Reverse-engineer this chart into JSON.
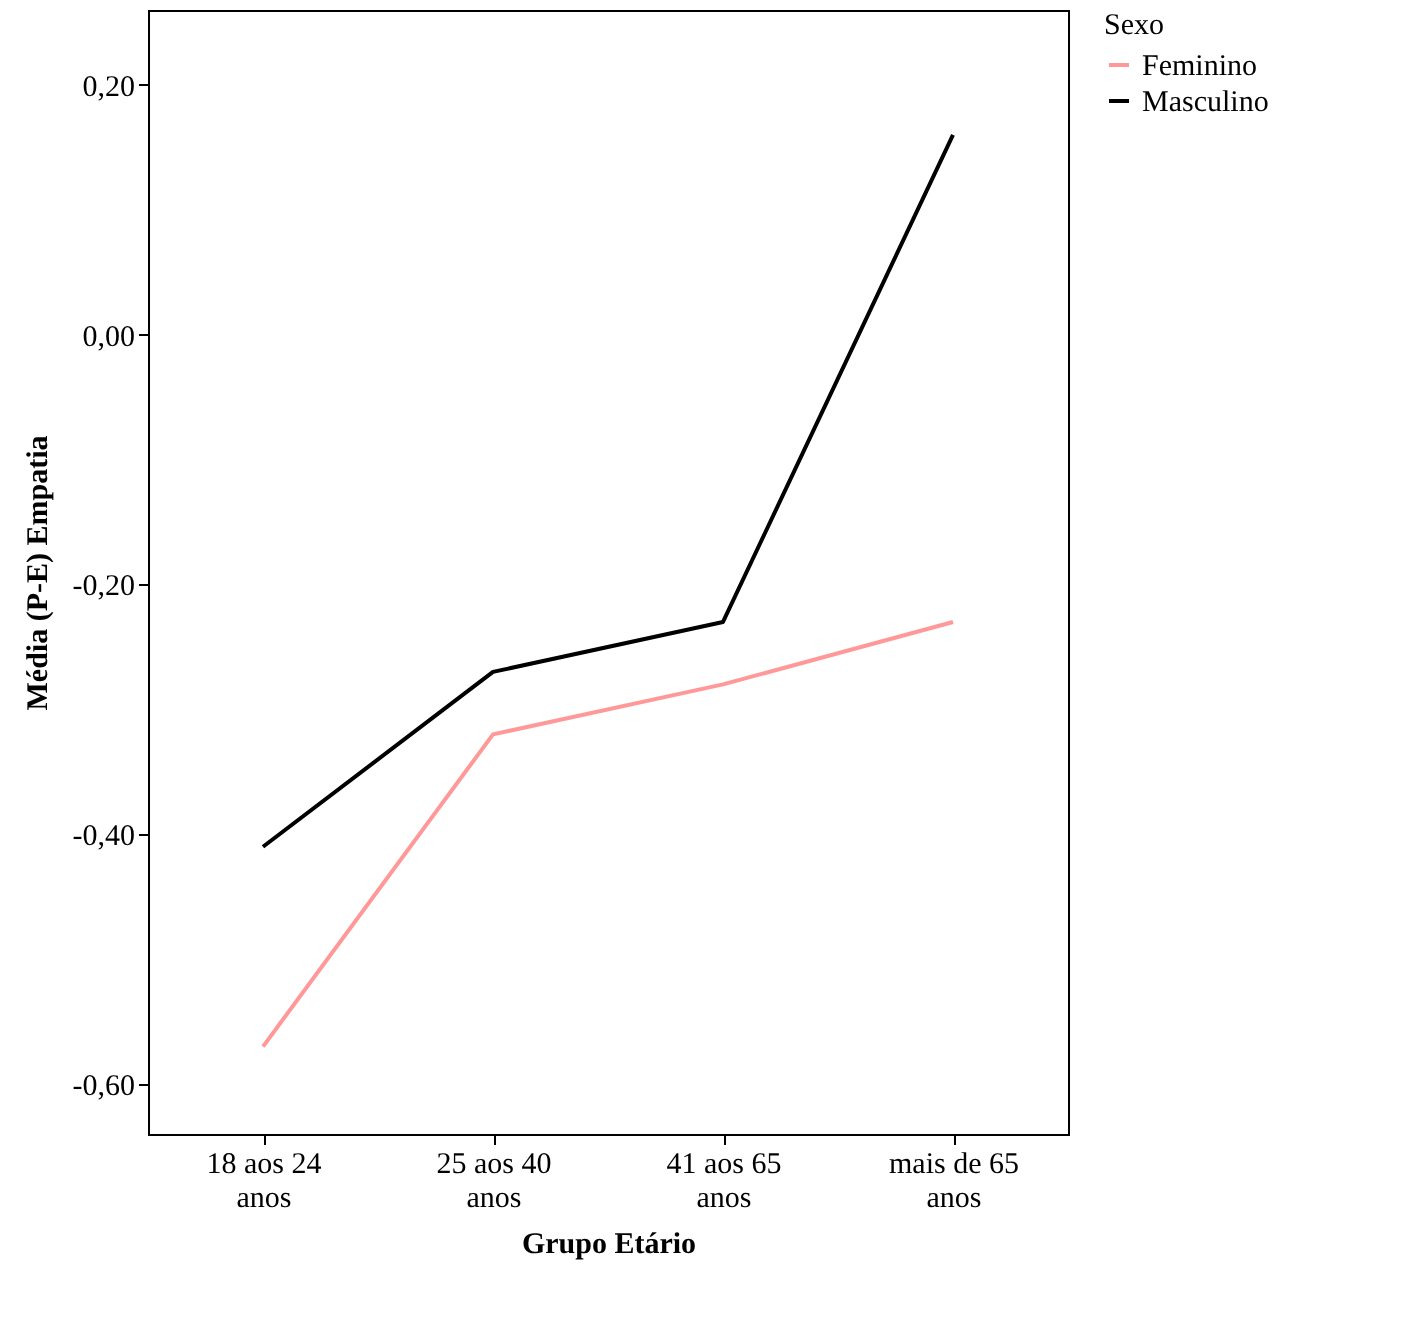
{
  "chart_data": {
    "type": "line",
    "xlabel": "Grupo Etário",
    "ylabel": "Média (P-E) Empatia",
    "legend_title": "Sexo",
    "legend": "top right",
    "grid": false,
    "marker": "none",
    "line_style": "solid",
    "categories": [
      "18 aos 24 anos",
      "25 aos 40 anos",
      "41 aos 65 anos",
      "mais de 65 anos"
    ],
    "series": [
      {
        "name": "Feminino",
        "color": "#ff9999",
        "values": [
          -0.57,
          -0.32,
          -0.28,
          -0.23
        ]
      },
      {
        "name": "Masculino",
        "color": "#000000",
        "values": [
          -0.41,
          -0.27,
          -0.23,
          0.16
        ]
      }
    ],
    "ylim": [
      -0.64,
      0.26
    ],
    "yticks": [
      {
        "value": -0.6,
        "label": "-0,60"
      },
      {
        "value": -0.4,
        "label": "-0,40"
      },
      {
        "value": -0.2,
        "label": "-0,20"
      },
      {
        "value": 0,
        "label": "0,00"
      },
      {
        "value": 0.2,
        "label": "0,20"
      }
    ]
  }
}
